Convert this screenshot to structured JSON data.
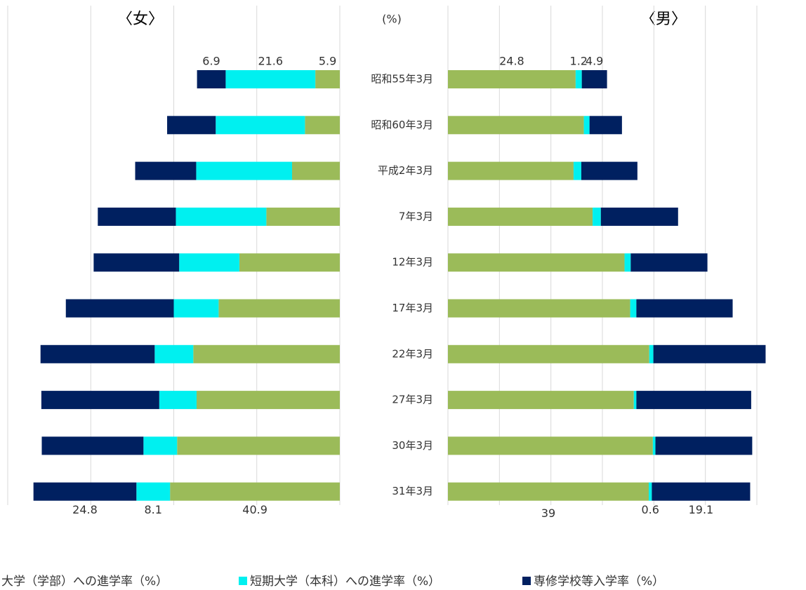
{
  "chart_data": [
    {
      "type": "bar",
      "orientation": "horizontal",
      "direction": "reversed",
      "title": "〈女〉",
      "xlim": [
        0,
        80
      ],
      "xticks": [
        0,
        20,
        40,
        60,
        80
      ],
      "grid": true,
      "series": [
        {
          "name": "大学（学部）への進学率（%）",
          "color": "#9bbb59",
          "values": [
            5.9,
            8.4,
            11.5,
            17.7,
            24.2,
            29.2,
            35.3,
            34.5,
            39.2,
            40.9
          ]
        },
        {
          "name": "短期大学（本科）への進学率（%）",
          "color": "#00f0f0",
          "values": [
            21.6,
            21.5,
            23.1,
            21.8,
            14.5,
            10.8,
            9.3,
            9.0,
            8.1,
            8.1
          ]
        },
        {
          "name": "専修学校等入学率（%）",
          "color": "#002060",
          "values": [
            6.9,
            11.7,
            14.7,
            18.8,
            20.6,
            26.0,
            27.5,
            28.4,
            24.5,
            24.8
          ]
        }
      ]
    },
    {
      "type": "bar",
      "orientation": "horizontal",
      "title": "〈男〉",
      "unit_label": "(%)",
      "categories": [
        "昭和55年3月",
        "昭和60年3月",
        "平成2年3月",
        "7年3月",
        "12年3月",
        "17年3月",
        "22年3月",
        "27年3月",
        "30年3月",
        "31年3月"
      ],
      "xlim": [
        0,
        60
      ],
      "xticks": [
        0,
        10,
        20,
        30,
        40,
        50,
        60
      ],
      "grid": true,
      "series": [
        {
          "name": "大学（学部）への進学率（%）",
          "color": "#9bbb59",
          "values": [
            24.8,
            26.4,
            24.4,
            28.1,
            34.3,
            35.4,
            39.1,
            36.1,
            39.8,
            39
          ]
        },
        {
          "name": "短期大学（本科）への進学率（%）",
          "color": "#00f0f0",
          "values": [
            1.2,
            1.1,
            1.5,
            1.6,
            1.2,
            1.2,
            0.8,
            0.5,
            0.5,
            0.6
          ]
        },
        {
          "name": "専修学校等入学率（%）",
          "color": "#002060",
          "values": [
            4.9,
            6.3,
            10.9,
            15.0,
            14.9,
            18.7,
            21.8,
            22.3,
            18.8,
            19.1
          ]
        }
      ]
    }
  ]
}
